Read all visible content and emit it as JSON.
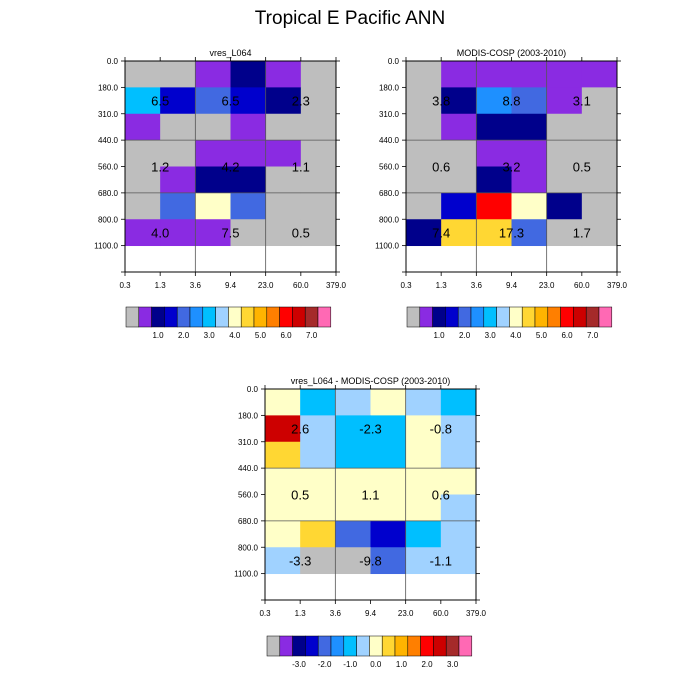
{
  "title": "Tropical E Pacific ANN",
  "palette": [
    "#BEBEBE",
    "#8A2BE2",
    "#00008B",
    "#0000CD",
    "#4169E1",
    "#1E90FF",
    "#00BFFF",
    "#A0D2FF",
    "#FFFFC8",
    "#FFD733",
    "#FFB400",
    "#FF7F00",
    "#FF0000",
    "#CD0000",
    "#A52A2A",
    "#FF69B4"
  ],
  "chart_data": [
    {
      "type": "heatmap",
      "title": "vres_L064",
      "x_ticks": [
        "0.3",
        "1.3",
        "3.6",
        "9.4",
        "23.0",
        "60.0",
        "379.0"
      ],
      "y_ticks": [
        "0.0",
        "180.0",
        "310.0",
        "440.0",
        "560.0",
        "680.0",
        "800.0",
        "1100.0"
      ],
      "cells": [
        [
          0,
          0,
          1,
          2,
          1,
          0
        ],
        [
          6,
          3,
          4,
          3,
          2,
          0
        ],
        [
          1,
          0,
          0,
          1,
          0,
          0
        ],
        [
          0,
          0,
          1,
          1,
          1,
          0
        ],
        [
          0,
          1,
          2,
          2,
          0,
          0
        ],
        [
          0,
          4,
          8,
          4,
          0,
          0
        ],
        [
          1,
          1,
          1,
          0,
          0,
          0
        ]
      ],
      "labels": [
        [
          "6.5",
          "6.5",
          "2.3"
        ],
        [
          "1.2",
          "4.2",
          "1.1"
        ],
        [
          "4.0",
          "7.5",
          "0.5"
        ]
      ],
      "colorbar": [
        "1.0",
        "2.0",
        "3.0",
        "4.0",
        "5.0",
        "6.0",
        "7.0"
      ]
    },
    {
      "type": "heatmap",
      "title": "MODIS-COSP (2003-2010)",
      "x_ticks": [
        "0.3",
        "1.3",
        "3.6",
        "9.4",
        "23.0",
        "60.0",
        "379.0"
      ],
      "y_ticks": [
        "0.0",
        "180.0",
        "310.0",
        "440.0",
        "560.0",
        "680.0",
        "800.0",
        "1100.0"
      ],
      "cells": [
        [
          0,
          1,
          1,
          1,
          1,
          1
        ],
        [
          0,
          2,
          5,
          4,
          1,
          0
        ],
        [
          0,
          1,
          2,
          2,
          0,
          0
        ],
        [
          0,
          0,
          1,
          1,
          0,
          0
        ],
        [
          0,
          0,
          2,
          1,
          0,
          0
        ],
        [
          0,
          3,
          12,
          8,
          2,
          0
        ],
        [
          2,
          9,
          9,
          4,
          0,
          0
        ]
      ],
      "labels": [
        [
          "3.8",
          "8.8",
          "3.1"
        ],
        [
          "0.6",
          "3.2",
          "0.5"
        ],
        [
          "7.4",
          "17.3",
          "1.7"
        ]
      ],
      "colorbar": [
        "1.0",
        "2.0",
        "3.0",
        "4.0",
        "5.0",
        "6.0",
        "7.0"
      ]
    },
    {
      "type": "heatmap",
      "title": "vres_L064 - MODIS-COSP (2003-2010)",
      "x_ticks": [
        "0.3",
        "1.3",
        "3.6",
        "9.4",
        "23.0",
        "60.0",
        "379.0"
      ],
      "y_ticks": [
        "0.0",
        "180.0",
        "310.0",
        "440.0",
        "560.0",
        "680.0",
        "800.0",
        "1100.0"
      ],
      "cells": [
        [
          8,
          6,
          7,
          8,
          7,
          6
        ],
        [
          13,
          7,
          6,
          6,
          8,
          7
        ],
        [
          9,
          7,
          6,
          6,
          8,
          7
        ],
        [
          8,
          8,
          8,
          8,
          8,
          8
        ],
        [
          8,
          8,
          8,
          8,
          8,
          7
        ],
        [
          8,
          9,
          4,
          3,
          6,
          7
        ],
        [
          7,
          0,
          0,
          4,
          7,
          7
        ]
      ],
      "labels": [
        [
          "2.6",
          "-2.3",
          "-0.8"
        ],
        [
          "0.5",
          "1.1",
          "0.6"
        ],
        [
          "-3.3",
          "-9.8",
          "-1.1"
        ]
      ],
      "colorbar": [
        "-3.0",
        "-2.0",
        "-1.0",
        "0.0",
        "1.0",
        "2.0",
        "3.0"
      ]
    }
  ]
}
